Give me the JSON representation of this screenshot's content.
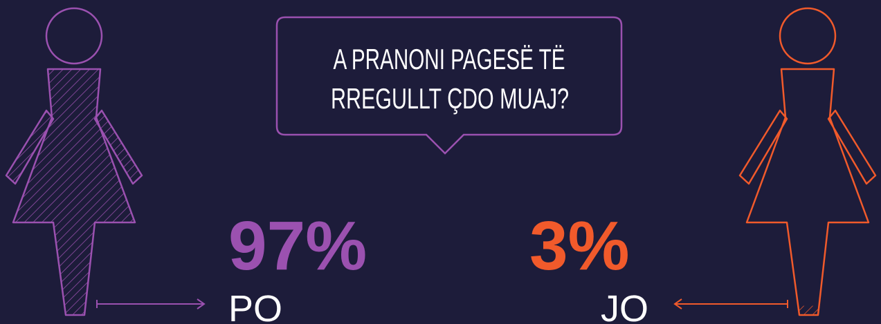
{
  "chart_data": {
    "type": "pictogram",
    "title": [
      "A PRANONI PAGESË TË",
      "RREGULLT ÇDO MUAJ?"
    ],
    "categories": [
      "PO",
      "JO"
    ],
    "values": [
      97,
      3
    ],
    "value_labels": [
      "97%",
      "3%"
    ],
    "colors": [
      "#9b51b0",
      "#f15a2b"
    ]
  }
}
